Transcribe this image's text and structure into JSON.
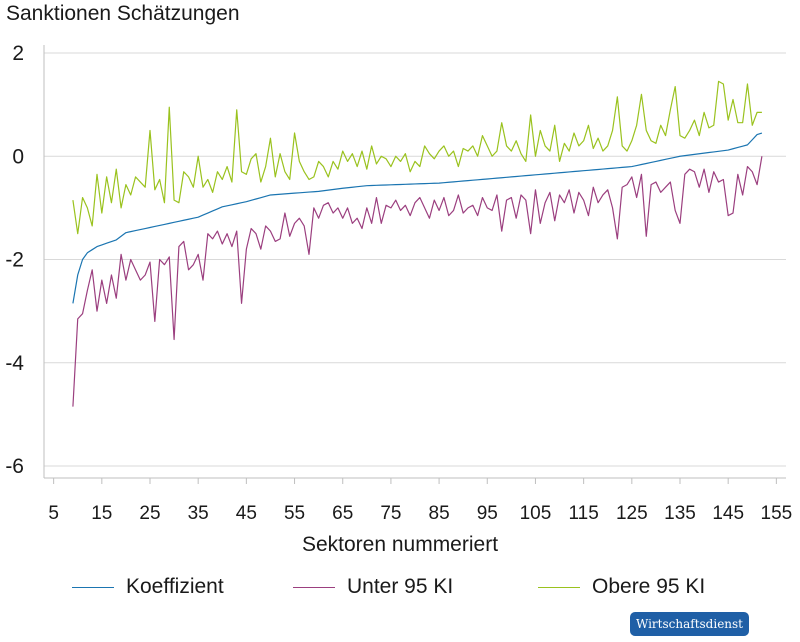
{
  "chart_data": {
    "type": "line",
    "title": "Sanktionen Schätzungen",
    "xlabel": "Sektoren nummeriert",
    "ylabel": "",
    "xlim": [
      3,
      157
    ],
    "ylim": [
      -6.2,
      2.2
    ],
    "xticks": [
      5,
      15,
      25,
      35,
      45,
      55,
      65,
      75,
      85,
      95,
      105,
      115,
      125,
      135,
      145,
      155
    ],
    "yticks": [
      2,
      0,
      -2,
      -4,
      -6
    ],
    "yticklabels": [
      "2",
      "0",
      "-2",
      "-4",
      "-6"
    ],
    "grid": "horizontal",
    "legend_position": "bottom",
    "x_start": 9,
    "x_end": 152,
    "series": [
      {
        "name": "Koeffizient",
        "color": "#1b75b1",
        "anchors": [
          [
            9,
            -2.85
          ],
          [
            10,
            -2.3
          ],
          [
            11,
            -2.0
          ],
          [
            12,
            -1.87
          ],
          [
            14,
            -1.75
          ],
          [
            18,
            -1.62
          ],
          [
            20,
            -1.48
          ],
          [
            25,
            -1.38
          ],
          [
            30,
            -1.28
          ],
          [
            35,
            -1.18
          ],
          [
            40,
            -0.98
          ],
          [
            45,
            -0.88
          ],
          [
            50,
            -0.75
          ],
          [
            60,
            -0.68
          ],
          [
            65,
            -0.62
          ],
          [
            70,
            -0.57
          ],
          [
            85,
            -0.52
          ],
          [
            100,
            -0.4
          ],
          [
            115,
            -0.28
          ],
          [
            125,
            -0.2
          ],
          [
            135,
            0.0
          ],
          [
            145,
            0.12
          ],
          [
            149,
            0.22
          ],
          [
            151,
            0.42
          ],
          [
            152,
            0.45
          ]
        ]
      },
      {
        "name": "Unter 95 KI",
        "color": "#9b3f7f",
        "anchors": [
          [
            9,
            -4.85
          ],
          [
            10,
            -3.15
          ],
          [
            11,
            -3.05
          ],
          [
            12,
            -2.6
          ],
          [
            13,
            -2.2
          ],
          [
            14,
            -3.0
          ],
          [
            15,
            -2.4
          ],
          [
            16,
            -2.85
          ],
          [
            17,
            -2.3
          ],
          [
            18,
            -2.75
          ],
          [
            19,
            -1.9
          ],
          [
            20,
            -2.4
          ],
          [
            21,
            -2.0
          ],
          [
            22,
            -2.2
          ],
          [
            23,
            -2.4
          ],
          [
            24,
            -2.3
          ],
          [
            25,
            -2.05
          ],
          [
            26,
            -3.2
          ],
          [
            27,
            -2.0
          ],
          [
            28,
            -2.1
          ],
          [
            29,
            -1.95
          ],
          [
            30,
            -3.55
          ],
          [
            31,
            -1.75
          ],
          [
            32,
            -1.65
          ],
          [
            33,
            -2.2
          ],
          [
            34,
            -2.1
          ],
          [
            35,
            -1.9
          ],
          [
            36,
            -2.4
          ],
          [
            37,
            -1.5
          ],
          [
            38,
            -1.6
          ],
          [
            39,
            -1.45
          ],
          [
            40,
            -1.7
          ],
          [
            41,
            -1.5
          ],
          [
            42,
            -1.75
          ],
          [
            43,
            -1.45
          ],
          [
            44,
            -2.85
          ],
          [
            45,
            -1.8
          ],
          [
            46,
            -1.4
          ],
          [
            47,
            -1.5
          ],
          [
            48,
            -1.8
          ],
          [
            49,
            -1.35
          ],
          [
            50,
            -1.45
          ],
          [
            51,
            -1.65
          ],
          [
            52,
            -1.6
          ],
          [
            53,
            -1.1
          ],
          [
            54,
            -1.55
          ],
          [
            55,
            -1.3
          ],
          [
            56,
            -1.2
          ],
          [
            57,
            -1.35
          ],
          [
            58,
            -1.9
          ],
          [
            59,
            -1.0
          ],
          [
            60,
            -1.2
          ],
          [
            61,
            -0.95
          ],
          [
            62,
            -0.9
          ],
          [
            63,
            -1.1
          ],
          [
            64,
            -1.0
          ],
          [
            65,
            -1.2
          ],
          [
            66,
            -1.0
          ],
          [
            67,
            -1.3
          ],
          [
            68,
            -1.2
          ],
          [
            69,
            -1.4
          ],
          [
            70,
            -1.0
          ],
          [
            71,
            -1.3
          ],
          [
            72,
            -0.8
          ],
          [
            73,
            -1.3
          ],
          [
            74,
            -0.95
          ],
          [
            75,
            -1.0
          ],
          [
            76,
            -0.85
          ],
          [
            77,
            -1.05
          ],
          [
            78,
            -0.95
          ],
          [
            79,
            -1.15
          ],
          [
            80,
            -0.9
          ],
          [
            81,
            -0.8
          ],
          [
            82,
            -1.0
          ],
          [
            83,
            -1.2
          ],
          [
            84,
            -0.85
          ],
          [
            85,
            -1.05
          ],
          [
            86,
            -0.8
          ],
          [
            87,
            -1.15
          ],
          [
            88,
            -1.05
          ],
          [
            89,
            -0.75
          ],
          [
            90,
            -1.1
          ],
          [
            91,
            -1.0
          ],
          [
            92,
            -0.95
          ],
          [
            93,
            -1.15
          ],
          [
            94,
            -0.8
          ],
          [
            95,
            -1.0
          ],
          [
            96,
            -1.05
          ],
          [
            97,
            -0.75
          ],
          [
            98,
            -1.45
          ],
          [
            99,
            -0.85
          ],
          [
            100,
            -0.8
          ],
          [
            101,
            -1.2
          ],
          [
            102,
            -0.75
          ],
          [
            103,
            -0.85
          ],
          [
            104,
            -1.5
          ],
          [
            105,
            -0.65
          ],
          [
            106,
            -1.3
          ],
          [
            107,
            -0.9
          ],
          [
            108,
            -0.7
          ],
          [
            109,
            -1.25
          ],
          [
            110,
            -0.75
          ],
          [
            111,
            -0.9
          ],
          [
            112,
            -0.65
          ],
          [
            113,
            -1.1
          ],
          [
            114,
            -0.7
          ],
          [
            115,
            -0.85
          ],
          [
            116,
            -1.15
          ],
          [
            117,
            -0.6
          ],
          [
            118,
            -0.9
          ],
          [
            119,
            -0.75
          ],
          [
            120,
            -0.65
          ],
          [
            121,
            -1.0
          ],
          [
            122,
            -1.6
          ],
          [
            123,
            -0.6
          ],
          [
            124,
            -0.55
          ],
          [
            125,
            -0.4
          ],
          [
            126,
            -0.8
          ],
          [
            127,
            -0.35
          ],
          [
            128,
            -1.55
          ],
          [
            129,
            -0.55
          ],
          [
            130,
            -0.5
          ],
          [
            131,
            -0.7
          ],
          [
            132,
            -0.6
          ],
          [
            133,
            -0.5
          ],
          [
            134,
            -1.05
          ],
          [
            135,
            -1.3
          ],
          [
            136,
            -0.35
          ],
          [
            137,
            -0.25
          ],
          [
            138,
            -0.3
          ],
          [
            139,
            -0.6
          ],
          [
            140,
            -0.25
          ],
          [
            141,
            -0.7
          ],
          [
            142,
            -0.3
          ],
          [
            143,
            -0.5
          ],
          [
            144,
            -0.45
          ],
          [
            145,
            -1.15
          ],
          [
            146,
            -1.1
          ],
          [
            147,
            -0.35
          ],
          [
            148,
            -0.75
          ],
          [
            149,
            -0.2
          ],
          [
            150,
            -0.3
          ],
          [
            151,
            -0.55
          ],
          [
            152,
            0.0
          ]
        ]
      },
      {
        "name": "Obere 95 KI",
        "color": "#9ac21e",
        "anchors": [
          [
            9,
            -0.85
          ],
          [
            10,
            -1.5
          ],
          [
            11,
            -0.8
          ],
          [
            12,
            -1.0
          ],
          [
            13,
            -1.35
          ],
          [
            14,
            -0.35
          ],
          [
            15,
            -1.1
          ],
          [
            16,
            -0.4
          ],
          [
            17,
            -0.9
          ],
          [
            18,
            -0.25
          ],
          [
            19,
            -1.0
          ],
          [
            20,
            -0.55
          ],
          [
            21,
            -0.75
          ],
          [
            22,
            -0.4
          ],
          [
            23,
            -0.5
          ],
          [
            24,
            -0.6
          ],
          [
            25,
            0.5
          ],
          [
            26,
            -0.65
          ],
          [
            27,
            -0.45
          ],
          [
            28,
            -0.9
          ],
          [
            29,
            0.95
          ],
          [
            30,
            -0.85
          ],
          [
            31,
            -0.9
          ],
          [
            32,
            -0.3
          ],
          [
            33,
            -0.4
          ],
          [
            34,
            -0.6
          ],
          [
            35,
            0.0
          ],
          [
            36,
            -0.6
          ],
          [
            37,
            -0.45
          ],
          [
            38,
            -0.7
          ],
          [
            39,
            -0.3
          ],
          [
            40,
            -0.45
          ],
          [
            41,
            -0.2
          ],
          [
            42,
            -0.5
          ],
          [
            43,
            0.9
          ],
          [
            44,
            -0.3
          ],
          [
            45,
            -0.35
          ],
          [
            46,
            -0.05
          ],
          [
            47,
            0.05
          ],
          [
            48,
            -0.5
          ],
          [
            49,
            -0.2
          ],
          [
            50,
            0.35
          ],
          [
            51,
            -0.4
          ],
          [
            52,
            0.05
          ],
          [
            53,
            -0.3
          ],
          [
            54,
            -0.45
          ],
          [
            55,
            0.45
          ],
          [
            56,
            -0.1
          ],
          [
            57,
            -0.3
          ],
          [
            58,
            -0.45
          ],
          [
            59,
            -0.4
          ],
          [
            60,
            -0.1
          ],
          [
            61,
            -0.2
          ],
          [
            62,
            -0.4
          ],
          [
            63,
            -0.1
          ],
          [
            64,
            -0.25
          ],
          [
            65,
            0.1
          ],
          [
            66,
            -0.1
          ],
          [
            67,
            0.05
          ],
          [
            68,
            -0.2
          ],
          [
            69,
            0.1
          ],
          [
            70,
            -0.25
          ],
          [
            71,
            0.2
          ],
          [
            72,
            -0.15
          ],
          [
            73,
            0.0
          ],
          [
            74,
            -0.05
          ],
          [
            75,
            -0.2
          ],
          [
            76,
            0.0
          ],
          [
            77,
            -0.1
          ],
          [
            78,
            0.05
          ],
          [
            79,
            -0.3
          ],
          [
            80,
            -0.1
          ],
          [
            81,
            -0.2
          ],
          [
            82,
            0.2
          ],
          [
            83,
            0.05
          ],
          [
            84,
            -0.05
          ],
          [
            85,
            0.1
          ],
          [
            86,
            0.2
          ],
          [
            87,
            0.0
          ],
          [
            88,
            0.1
          ],
          [
            89,
            -0.2
          ],
          [
            90,
            0.15
          ],
          [
            91,
            0.1
          ],
          [
            92,
            0.2
          ],
          [
            93,
            0.0
          ],
          [
            94,
            0.4
          ],
          [
            95,
            0.2
          ],
          [
            96,
            0.0
          ],
          [
            97,
            0.1
          ],
          [
            98,
            0.65
          ],
          [
            99,
            0.2
          ],
          [
            100,
            0.1
          ],
          [
            101,
            0.3
          ],
          [
            102,
            0.05
          ],
          [
            103,
            -0.1
          ],
          [
            104,
            0.8
          ],
          [
            105,
            0.0
          ],
          [
            106,
            0.5
          ],
          [
            107,
            0.2
          ],
          [
            108,
            0.1
          ],
          [
            109,
            0.6
          ],
          [
            110,
            -0.1
          ],
          [
            111,
            0.25
          ],
          [
            112,
            0.1
          ],
          [
            113,
            0.45
          ],
          [
            114,
            0.2
          ],
          [
            115,
            0.3
          ],
          [
            116,
            0.6
          ],
          [
            117,
            0.15
          ],
          [
            118,
            0.35
          ],
          [
            119,
            0.1
          ],
          [
            120,
            0.2
          ],
          [
            121,
            0.5
          ],
          [
            122,
            1.15
          ],
          [
            123,
            0.2
          ],
          [
            124,
            0.1
          ],
          [
            125,
            0.3
          ],
          [
            126,
            0.6
          ],
          [
            127,
            1.2
          ],
          [
            128,
            0.5
          ],
          [
            129,
            0.3
          ],
          [
            130,
            0.25
          ],
          [
            131,
            0.6
          ],
          [
            132,
            0.4
          ],
          [
            133,
            0.9
          ],
          [
            134,
            1.35
          ],
          [
            135,
            0.4
          ],
          [
            136,
            0.35
          ],
          [
            137,
            0.5
          ],
          [
            138,
            0.7
          ],
          [
            139,
            0.4
          ],
          [
            140,
            0.85
          ],
          [
            141,
            0.55
          ],
          [
            142,
            0.6
          ],
          [
            143,
            1.45
          ],
          [
            144,
            1.4
          ],
          [
            145,
            0.7
          ],
          [
            146,
            1.1
          ],
          [
            147,
            0.65
          ],
          [
            148,
            0.65
          ],
          [
            149,
            1.4
          ],
          [
            150,
            0.6
          ],
          [
            151,
            0.85
          ],
          [
            152,
            0.85
          ]
        ]
      }
    ]
  },
  "badge": {
    "label": "Wirtschaftsdienst"
  }
}
